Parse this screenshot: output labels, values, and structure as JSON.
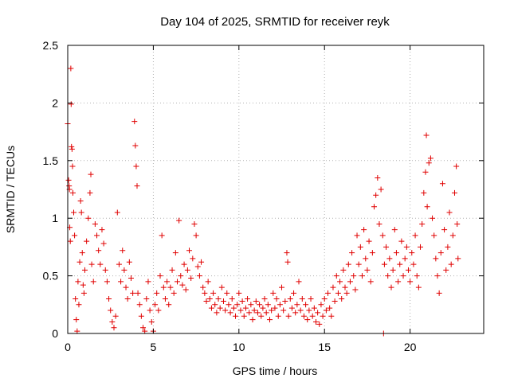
{
  "chart_data": {
    "type": "scatter",
    "title": "Day 104 of 2025, SRMTID for receiver reyk",
    "xlabel": "GPS time / hours",
    "ylabel": "SRMTID / TECUs",
    "xlim": [
      0,
      24.3
    ],
    "ylim": [
      0,
      2.5
    ],
    "x_ticks": [
      0,
      5,
      10,
      15,
      20
    ],
    "y_ticks": [
      0,
      0.5,
      1,
      1.5,
      2,
      2.5
    ],
    "x_tick_labels": [
      "0",
      "5",
      "10",
      "15",
      "20"
    ],
    "y_tick_labels": [
      "0",
      "0.5",
      "1",
      "1.5",
      "2",
      "2.5"
    ],
    "grid": true,
    "marker": "+",
    "color": "#e00000",
    "series": [
      {
        "name": "SRMTID",
        "points": [
          [
            0.0,
            1.82
          ],
          [
            0.05,
            1.33
          ],
          [
            0.08,
            1.28
          ],
          [
            0.1,
            1.25
          ],
          [
            0.12,
            0.92
          ],
          [
            0.15,
            0.8
          ],
          [
            0.18,
            2.3
          ],
          [
            0.2,
            1.99
          ],
          [
            0.22,
            1.62
          ],
          [
            0.25,
            1.6
          ],
          [
            0.28,
            1.45
          ],
          [
            0.3,
            1.22
          ],
          [
            0.35,
            1.05
          ],
          [
            0.4,
            0.85
          ],
          [
            0.45,
            0.3
          ],
          [
            0.5,
            0.12
          ],
          [
            0.55,
            0.02
          ],
          [
            0.6,
            0.45
          ],
          [
            0.65,
            0.25
          ],
          [
            0.7,
            0.62
          ],
          [
            0.75,
            1.15
          ],
          [
            0.8,
            1.05
          ],
          [
            0.85,
            0.7
          ],
          [
            0.9,
            0.42
          ],
          [
            0.95,
            0.35
          ],
          [
            1.0,
            0.55
          ],
          [
            1.1,
            0.8
          ],
          [
            1.2,
            1.0
          ],
          [
            1.3,
            1.22
          ],
          [
            1.35,
            1.38
          ],
          [
            1.4,
            0.6
          ],
          [
            1.5,
            0.45
          ],
          [
            1.6,
            0.95
          ],
          [
            1.7,
            0.85
          ],
          [
            1.8,
            0.72
          ],
          [
            1.9,
            0.6
          ],
          [
            2.0,
            0.9
          ],
          [
            2.1,
            0.78
          ],
          [
            2.2,
            0.55
          ],
          [
            2.3,
            0.45
          ],
          [
            2.4,
            0.3
          ],
          [
            2.5,
            0.2
          ],
          [
            2.6,
            0.1
          ],
          [
            2.7,
            0.05
          ],
          [
            2.8,
            0.15
          ],
          [
            2.9,
            1.05
          ],
          [
            3.0,
            0.6
          ],
          [
            3.1,
            0.45
          ],
          [
            3.2,
            0.72
          ],
          [
            3.3,
            0.55
          ],
          [
            3.4,
            0.4
          ],
          [
            3.5,
            0.3
          ],
          [
            3.6,
            0.62
          ],
          [
            3.7,
            0.48
          ],
          [
            3.8,
            0.35
          ],
          [
            3.9,
            1.84
          ],
          [
            3.95,
            1.63
          ],
          [
            4.0,
            1.45
          ],
          [
            4.05,
            1.28
          ],
          [
            4.1,
            0.35
          ],
          [
            4.2,
            0.25
          ],
          [
            4.3,
            0.15
          ],
          [
            4.4,
            0.05
          ],
          [
            4.5,
            0.02
          ],
          [
            4.6,
            0.3
          ],
          [
            4.7,
            0.45
          ],
          [
            4.8,
            0.2
          ],
          [
            4.9,
            0.1
          ],
          [
            5.0,
            0.02
          ],
          [
            5.1,
            0.25
          ],
          [
            5.2,
            0.35
          ],
          [
            5.3,
            0.2
          ],
          [
            5.4,
            0.5
          ],
          [
            5.5,
            0.85
          ],
          [
            5.6,
            0.4
          ],
          [
            5.7,
            0.3
          ],
          [
            5.8,
            0.45
          ],
          [
            5.9,
            0.25
          ],
          [
            6.0,
            0.4
          ],
          [
            6.1,
            0.55
          ],
          [
            6.2,
            0.35
          ],
          [
            6.3,
            0.7
          ],
          [
            6.4,
            0.45
          ],
          [
            6.5,
            0.98
          ],
          [
            6.6,
            0.5
          ],
          [
            6.7,
            0.42
          ],
          [
            6.8,
            0.6
          ],
          [
            6.9,
            0.38
          ],
          [
            7.0,
            0.55
          ],
          [
            7.1,
            0.72
          ],
          [
            7.2,
            0.48
          ],
          [
            7.3,
            0.65
          ],
          [
            7.4,
            0.95
          ],
          [
            7.5,
            0.85
          ],
          [
            7.6,
            0.58
          ],
          [
            7.7,
            0.5
          ],
          [
            7.8,
            0.62
          ],
          [
            7.9,
            0.4
          ],
          [
            8.0,
            0.35
          ],
          [
            8.1,
            0.28
          ],
          [
            8.2,
            0.45
          ],
          [
            8.3,
            0.3
          ],
          [
            8.4,
            0.22
          ],
          [
            8.5,
            0.35
          ],
          [
            8.6,
            0.25
          ],
          [
            8.7,
            0.18
          ],
          [
            8.8,
            0.3
          ],
          [
            8.9,
            0.22
          ],
          [
            9.0,
            0.4
          ],
          [
            9.1,
            0.28
          ],
          [
            9.2,
            0.2
          ],
          [
            9.3,
            0.35
          ],
          [
            9.4,
            0.25
          ],
          [
            9.5,
            0.18
          ],
          [
            9.6,
            0.3
          ],
          [
            9.7,
            0.22
          ],
          [
            9.8,
            0.15
          ],
          [
            9.9,
            0.25
          ],
          [
            10.0,
            0.35
          ],
          [
            10.1,
            0.2
          ],
          [
            10.2,
            0.28
          ],
          [
            10.3,
            0.15
          ],
          [
            10.4,
            0.22
          ],
          [
            10.5,
            0.3
          ],
          [
            10.6,
            0.18
          ],
          [
            10.7,
            0.25
          ],
          [
            10.8,
            0.12
          ],
          [
            10.9,
            0.2
          ],
          [
            11.0,
            0.28
          ],
          [
            11.1,
            0.18
          ],
          [
            11.2,
            0.25
          ],
          [
            11.3,
            0.15
          ],
          [
            11.4,
            0.22
          ],
          [
            11.5,
            0.3
          ],
          [
            11.6,
            0.18
          ],
          [
            11.7,
            0.25
          ],
          [
            11.8,
            0.12
          ],
          [
            11.9,
            0.2
          ],
          [
            12.0,
            0.35
          ],
          [
            12.1,
            0.22
          ],
          [
            12.2,
            0.3
          ],
          [
            12.3,
            0.15
          ],
          [
            12.4,
            0.25
          ],
          [
            12.5,
            0.4
          ],
          [
            12.6,
            0.2
          ],
          [
            12.7,
            0.28
          ],
          [
            12.8,
            0.7
          ],
          [
            12.85,
            0.62
          ],
          [
            12.9,
            0.15
          ],
          [
            13.0,
            0.3
          ],
          [
            13.1,
            0.22
          ],
          [
            13.2,
            0.35
          ],
          [
            13.3,
            0.18
          ],
          [
            13.4,
            0.25
          ],
          [
            13.5,
            0.45
          ],
          [
            13.6,
            0.2
          ],
          [
            13.7,
            0.3
          ],
          [
            13.8,
            0.15
          ],
          [
            13.9,
            0.25
          ],
          [
            14.0,
            0.12
          ],
          [
            14.1,
            0.2
          ],
          [
            14.2,
            0.3
          ],
          [
            14.3,
            0.15
          ],
          [
            14.4,
            0.22
          ],
          [
            14.5,
            0.1
          ],
          [
            14.6,
            0.18
          ],
          [
            14.7,
            0.08
          ],
          [
            14.8,
            0.25
          ],
          [
            14.9,
            0.15
          ],
          [
            15.0,
            0.3
          ],
          [
            15.1,
            0.2
          ],
          [
            15.2,
            0.35
          ],
          [
            15.3,
            0.22
          ],
          [
            15.4,
            0.15
          ],
          [
            15.5,
            0.4
          ],
          [
            15.6,
            0.28
          ],
          [
            15.7,
            0.5
          ],
          [
            15.8,
            0.35
          ],
          [
            15.9,
            0.45
          ],
          [
            16.0,
            0.3
          ],
          [
            16.1,
            0.55
          ],
          [
            16.2,
            0.4
          ],
          [
            16.3,
            0.35
          ],
          [
            16.4,
            0.6
          ],
          [
            16.5,
            0.45
          ],
          [
            16.6,
            0.7
          ],
          [
            16.7,
            0.5
          ],
          [
            16.8,
            0.38
          ],
          [
            16.9,
            0.85
          ],
          [
            17.0,
            0.6
          ],
          [
            17.1,
            0.75
          ],
          [
            17.2,
            0.5
          ],
          [
            17.3,
            0.9
          ],
          [
            17.4,
            0.65
          ],
          [
            17.5,
            0.55
          ],
          [
            17.6,
            0.8
          ],
          [
            17.7,
            0.45
          ],
          [
            17.8,
            0.7
          ],
          [
            17.9,
            1.1
          ],
          [
            18.0,
            1.2
          ],
          [
            18.1,
            1.35
          ],
          [
            18.2,
            0.95
          ],
          [
            18.3,
            1.25
          ],
          [
            18.4,
            0.85
          ],
          [
            18.45,
            0.0
          ],
          [
            18.5,
            0.6
          ],
          [
            18.6,
            0.75
          ],
          [
            18.7,
            0.5
          ],
          [
            18.8,
            0.65
          ],
          [
            18.9,
            0.4
          ],
          [
            19.0,
            0.55
          ],
          [
            19.1,
            0.9
          ],
          [
            19.2,
            0.7
          ],
          [
            19.3,
            0.45
          ],
          [
            19.4,
            0.6
          ],
          [
            19.5,
            0.8
          ],
          [
            19.6,
            0.5
          ],
          [
            19.7,
            0.65
          ],
          [
            19.8,
            0.75
          ],
          [
            19.9,
            0.55
          ],
          [
            20.0,
            0.45
          ],
          [
            20.1,
            0.7
          ],
          [
            20.2,
            0.6
          ],
          [
            20.3,
            0.85
          ],
          [
            20.4,
            0.5
          ],
          [
            20.5,
            0.4
          ],
          [
            20.6,
            0.75
          ],
          [
            20.7,
            0.95
          ],
          [
            20.8,
            1.22
          ],
          [
            20.9,
            1.4
          ],
          [
            20.95,
            1.72
          ],
          [
            21.0,
            1.1
          ],
          [
            21.1,
            1.48
          ],
          [
            21.2,
            1.52
          ],
          [
            21.3,
            1.0
          ],
          [
            21.4,
            0.85
          ],
          [
            21.5,
            0.65
          ],
          [
            21.6,
            0.5
          ],
          [
            21.7,
            0.35
          ],
          [
            21.8,
            0.7
          ],
          [
            21.9,
            1.3
          ],
          [
            22.0,
            0.9
          ],
          [
            22.1,
            0.55
          ],
          [
            22.2,
            0.75
          ],
          [
            22.3,
            1.05
          ],
          [
            22.4,
            0.6
          ],
          [
            22.5,
            0.85
          ],
          [
            22.6,
            1.22
          ],
          [
            22.7,
            1.45
          ],
          [
            22.75,
            0.95
          ],
          [
            22.8,
            0.65
          ]
        ]
      }
    ]
  }
}
